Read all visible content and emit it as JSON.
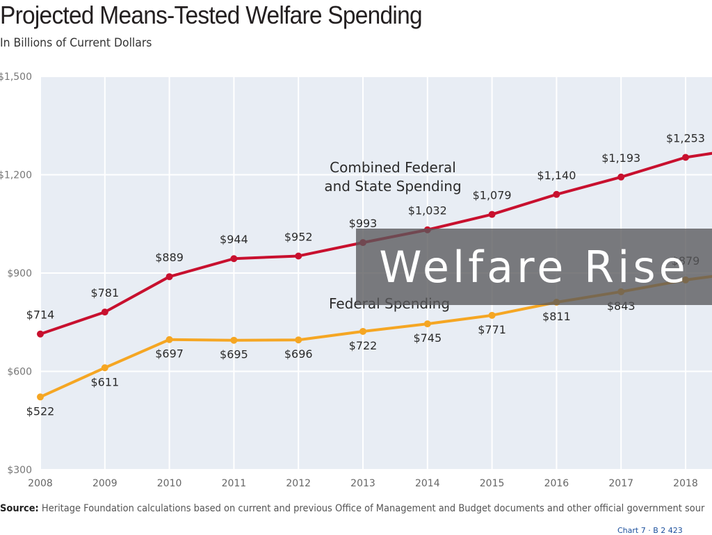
{
  "title": "Projected Means-Tested Welfare Spending",
  "subtitle": "In Billions of Current Dollars",
  "source_label": "Source:",
  "source_text": "Heritage Foundation calculations based on current and previous Office of Management and Budget documents and other official government sour",
  "credit": "Chart 7 · B 2 423",
  "overlay_title": "Welfare Rise",
  "colors": {
    "combined": "#c8102e",
    "federal": "#f5a623",
    "plot_bg": "#e8edf4",
    "grid": "#ffffff",
    "overlay": "#58595b"
  },
  "chart_data": {
    "type": "line",
    "title": "Projected Means-Tested Welfare Spending",
    "subtitle": "In Billions of Current Dollars",
    "xlabel": "",
    "ylabel": "",
    "x": [
      2008,
      2009,
      2010,
      2011,
      2012,
      2013,
      2014,
      2015,
      2016,
      2017,
      2018
    ],
    "x_tick_labels": [
      "2008",
      "2009",
      "2010",
      "2011",
      "2012",
      "2013",
      "2014",
      "2015",
      "2016",
      "2017",
      "2018"
    ],
    "ylim": [
      300,
      1500
    ],
    "y_ticks": [
      300,
      600,
      900,
      1200,
      1500
    ],
    "y_tick_labels": [
      "$300",
      "$600",
      "$900",
      "$1,200",
      "$1,500"
    ],
    "grid": true,
    "series": [
      {
        "name": "Combined Federal and State Spending",
        "label_lines": [
          "Combined Federal",
          "and State Spending"
        ],
        "values": [
          714,
          781,
          889,
          944,
          952,
          993,
          1032,
          1079,
          1140,
          1193,
          1253
        ],
        "data_labels": [
          "$714",
          "$781",
          "$889",
          "$944",
          "$952",
          "$993",
          "$1,032",
          "$1,079",
          "$1,140",
          "$1,193",
          "$1,253"
        ],
        "continues_to": 1283
      },
      {
        "name": "Federal Spending",
        "label_lines": [
          "Federal Spending"
        ],
        "values": [
          522,
          611,
          697,
          695,
          696,
          722,
          745,
          771,
          811,
          843,
          879
        ],
        "data_labels": [
          "$522",
          "$611",
          "$697",
          "$695",
          "$696",
          "$722",
          "$745",
          "$771",
          "$811",
          "$843",
          "$879"
        ],
        "continues_to": 905
      }
    ]
  }
}
